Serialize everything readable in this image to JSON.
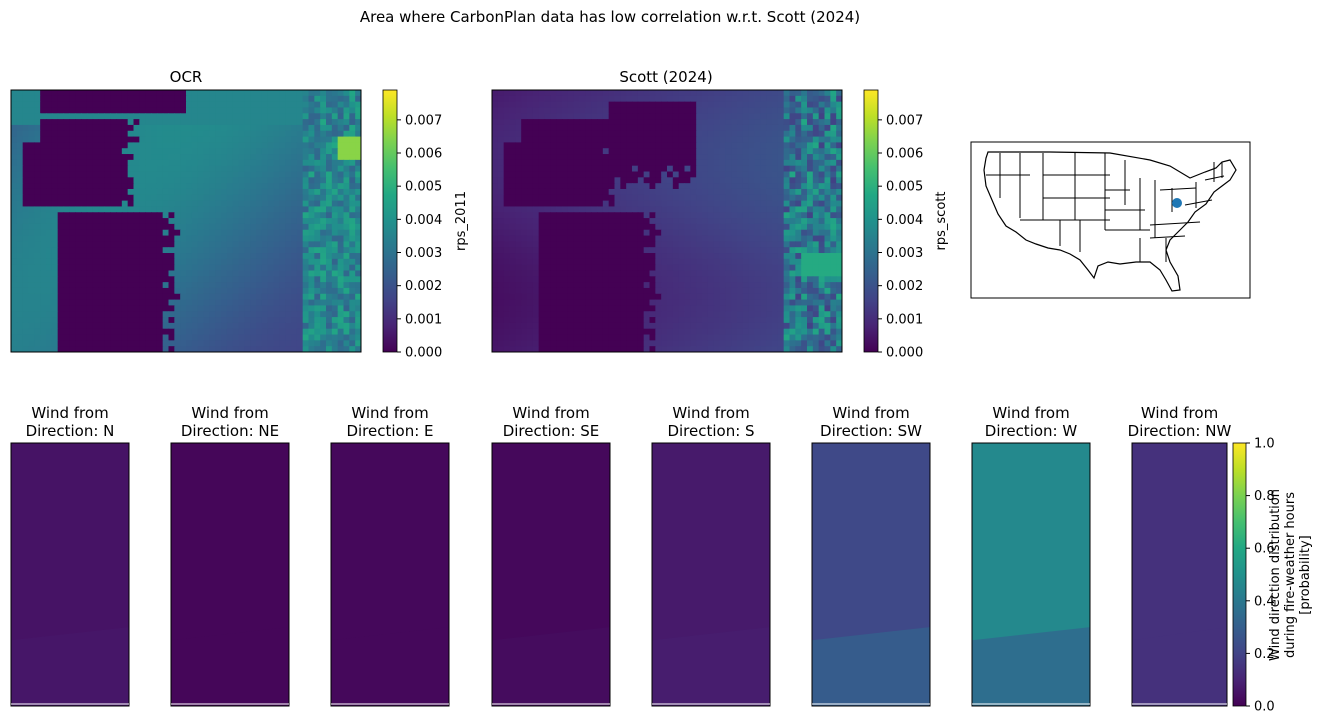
{
  "figure": {
    "suptitle": "Area where CarbonPlan data has low correlation w.r.t. Scott (2024)"
  },
  "colors": {
    "viridis": [
      "#440154",
      "#482475",
      "#414487",
      "#355f8d",
      "#2a788e",
      "#21918c",
      "#22a884",
      "#44bf70",
      "#7ad151",
      "#bddf26",
      "#fde725"
    ],
    "marker": "#1f77b4"
  },
  "chart_data": [
    {
      "type": "heatmap",
      "title": "OCR",
      "colorbar_label": "rps_2011",
      "clim": [
        0,
        0.0079
      ],
      "colorbar_ticks": [
        "0.000",
        "0.001",
        "0.002",
        "0.003",
        "0.004",
        "0.005",
        "0.006",
        "0.007"
      ],
      "colorbar_tick_values": [
        0,
        0.001,
        0.002,
        0.003,
        0.004,
        0.005,
        0.006,
        0.007
      ],
      "regions": {
        "background_max": 0.0042,
        "zero_zone": 0.0,
        "hotspot": 0.0065
      }
    },
    {
      "type": "heatmap",
      "title": "Scott (2024)",
      "colorbar_label": "rps_scott",
      "clim": [
        0,
        0.0079
      ],
      "colorbar_ticks": [
        "0.000",
        "0.001",
        "0.002",
        "0.003",
        "0.004",
        "0.005",
        "0.006",
        "0.007"
      ],
      "colorbar_tick_values": [
        0,
        0.001,
        0.002,
        0.003,
        0.004,
        0.005,
        0.006,
        0.007
      ],
      "regions": {
        "background_max": 0.0022,
        "zero_zone": 0.0,
        "hotspot": 0.0048
      }
    },
    {
      "type": "map",
      "title": "",
      "region": "Contiguous United States",
      "marker": {
        "lon": -82.5,
        "lat": 38.5
      }
    },
    {
      "type": "heatmap",
      "colorbar_label": "Wind direction distribution\nduring fire-weather hours\n[probability]",
      "clim": [
        0,
        1
      ],
      "colorbar_ticks": [
        "0.0",
        "0.2",
        "0.4",
        "0.6",
        "0.8",
        "1.0"
      ],
      "colorbar_tick_values": [
        0,
        0.2,
        0.4,
        0.6,
        0.8,
        1.0
      ],
      "panels": [
        {
          "title": "Wind from\nDirection: N",
          "value_top": 0.05,
          "value_bottom": 0.06
        },
        {
          "title": "Wind from\nDirection: NE",
          "value_top": 0.015,
          "value_bottom": 0.015
        },
        {
          "title": "Wind from\nDirection: E",
          "value_top": 0.02,
          "value_bottom": 0.02
        },
        {
          "title": "Wind from\nDirection: SE",
          "value_top": 0.02,
          "value_bottom": 0.03
        },
        {
          "title": "Wind from\nDirection: S",
          "value_top": 0.07,
          "value_bottom": 0.08
        },
        {
          "title": "Wind from\nDirection: SW",
          "value_top": 0.22,
          "value_bottom": 0.29
        },
        {
          "title": "Wind from\nDirection: W",
          "value_top": 0.47,
          "value_bottom": 0.36
        },
        {
          "title": "Wind from\nDirection: NW",
          "value_top": 0.14,
          "value_bottom": 0.14
        }
      ]
    }
  ]
}
